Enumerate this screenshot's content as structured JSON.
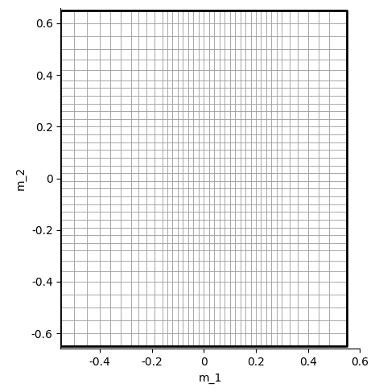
{
  "chart_data": {
    "type": "mesh",
    "xlabel": "m_1",
    "ylabel": "m_2",
    "xlim": [
      -0.55,
      0.6
    ],
    "ylim": [
      -0.66,
      0.66
    ],
    "xticks": [
      -0.4,
      -0.2,
      0,
      0.2,
      0.4,
      0.6
    ],
    "yticks": [
      -0.6,
      -0.4,
      -0.2,
      0,
      0.2,
      0.4,
      0.6
    ],
    "color": "#9a9a9a",
    "frame": {
      "x": [
        -0.55,
        0.55
      ],
      "y": [
        -0.65,
        0.65
      ],
      "color": "#000000"
    },
    "x_lines": [
      -0.55,
      -0.5,
      -0.45,
      -0.4,
      -0.36,
      -0.32,
      -0.28,
      -0.25,
      -0.22,
      -0.19,
      -0.16,
      -0.14,
      -0.12,
      -0.1,
      -0.08,
      -0.06,
      -0.04,
      -0.02,
      0,
      0.02,
      0.04,
      0.06,
      0.08,
      0.1,
      0.12,
      0.14,
      0.16,
      0.18,
      0.2,
      0.22,
      0.24,
      0.26,
      0.28,
      0.3,
      0.33,
      0.36,
      0.4,
      0.44,
      0.48,
      0.55
    ],
    "y_lines": [
      -0.65,
      -0.6,
      -0.55,
      -0.5,
      -0.45,
      -0.4,
      -0.36,
      -0.32,
      -0.28,
      -0.25,
      -0.22,
      -0.19,
      -0.16,
      -0.13,
      -0.1,
      -0.07,
      -0.04,
      -0.01,
      0.02,
      0.05,
      0.08,
      0.11,
      0.14,
      0.17,
      0.2,
      0.23,
      0.26,
      0.29,
      0.32,
      0.35,
      0.38,
      0.42,
      0.46,
      0.5,
      0.55,
      0.6,
      0.65
    ],
    "grid": false
  }
}
